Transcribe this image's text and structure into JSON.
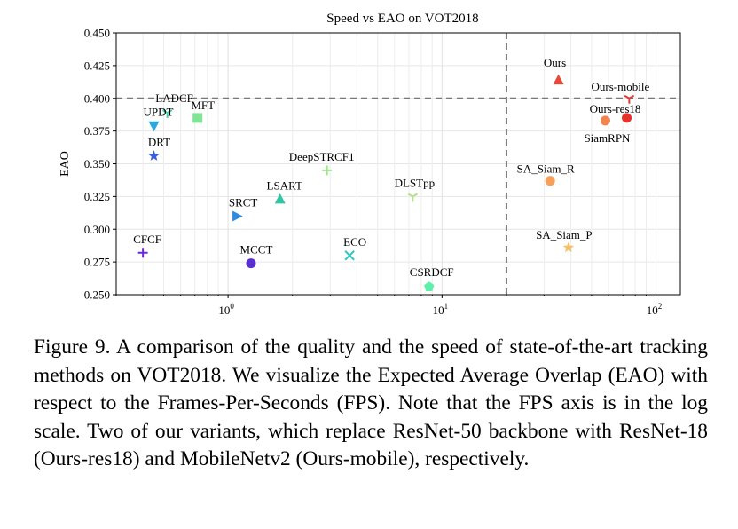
{
  "chart_data": {
    "type": "scatter",
    "title": "Speed vs EAO on VOT2018",
    "xlabel": "",
    "ylabel": "EAO",
    "x_scale": "log",
    "xlim": [
      0.3,
      130
    ],
    "ylim": [
      0.25,
      0.45
    ],
    "yticks": [
      "0.250",
      "0.275",
      "0.300",
      "0.325",
      "0.350",
      "0.375",
      "0.400",
      "0.425",
      "0.450"
    ],
    "xticks": [
      {
        "base": "10",
        "exp": "0",
        "value": 1
      },
      {
        "base": "10",
        "exp": "1",
        "value": 10
      },
      {
        "base": "10",
        "exp": "2",
        "value": 100
      }
    ],
    "reference_lines": {
      "eao": 0.4,
      "fps": 20
    },
    "grid": true,
    "points": [
      {
        "name": "Ours",
        "fps": 35,
        "eao": 0.414,
        "marker": "triangle-up",
        "color": "#e8493a"
      },
      {
        "name": "Ours-mobile",
        "fps": 75,
        "eao": 0.4,
        "marker": "tri-down",
        "color": "#e03a30"
      },
      {
        "name": "Ours-res18",
        "fps": 73,
        "eao": 0.385,
        "marker": "circle",
        "color": "#e5322b"
      },
      {
        "name": "SiamRPN",
        "fps": 58,
        "eao": 0.383,
        "marker": "circle",
        "color": "#f2834f"
      },
      {
        "name": "SA_Siam_R",
        "fps": 32,
        "eao": 0.337,
        "marker": "circle",
        "color": "#f5a05c"
      },
      {
        "name": "SA_Siam_P",
        "fps": 39,
        "eao": 0.286,
        "marker": "star",
        "color": "#f5c168"
      },
      {
        "name": "CSRDCF",
        "fps": 8.7,
        "eao": 0.256,
        "marker": "pentagon",
        "color": "#5ef0a8"
      },
      {
        "name": "DLSTpp",
        "fps": 7.3,
        "eao": 0.325,
        "marker": "tri-down",
        "color": "#b8e089"
      },
      {
        "name": "ECO",
        "fps": 3.7,
        "eao": 0.28,
        "marker": "x",
        "color": "#2ec7c3"
      },
      {
        "name": "DeepSTRCF1",
        "fps": 2.9,
        "eao": 0.345,
        "marker": "plus",
        "color": "#9fe38f"
      },
      {
        "name": "LSART",
        "fps": 1.75,
        "eao": 0.323,
        "marker": "triangle-up",
        "color": "#2ec7a3"
      },
      {
        "name": "MCCT",
        "fps": 1.28,
        "eao": 0.274,
        "marker": "circle",
        "color": "#5a2fd1"
      },
      {
        "name": "SRCT",
        "fps": 1.1,
        "eao": 0.31,
        "marker": "triangle-right",
        "color": "#2e8be0"
      },
      {
        "name": "MFT",
        "fps": 0.72,
        "eao": 0.385,
        "marker": "square",
        "color": "#7ee596"
      },
      {
        "name": "LADCF",
        "fps": 0.52,
        "eao": 0.389,
        "marker": "tri-down",
        "color": "#3ed3ae"
      },
      {
        "name": "UPDT",
        "fps": 0.45,
        "eao": 0.379,
        "marker": "triangle-down",
        "color": "#2aa8de"
      },
      {
        "name": "DRT",
        "fps": 0.45,
        "eao": 0.356,
        "marker": "star",
        "color": "#3a5ee0"
      },
      {
        "name": "CFCF",
        "fps": 0.4,
        "eao": 0.282,
        "marker": "plus",
        "color": "#6a2bd6"
      }
    ]
  },
  "caption": "Figure 9. A comparison of the quality and the speed of state-of-the-art tracking methods on VOT2018. We visualize the Expected Average Overlap (EAO) with respect to the Frames-Per-Seconds (FPS). Note that the FPS axis is in the log scale. Two of our variants, which replace ResNet-50 backbone with ResNet-18 (Ours-res18) and MobileNetv2 (Ours-mobile), respectively."
}
